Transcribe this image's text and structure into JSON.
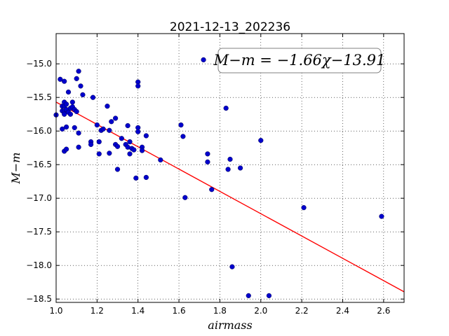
{
  "chart_data": {
    "type": "scatter",
    "title": "2021-12-13_202236",
    "xlabel": "airmass",
    "ylabel": "M−m",
    "xlim": [
      1.0,
      2.7
    ],
    "ylim": [
      -18.55,
      -14.55
    ],
    "xticks": [
      1.0,
      1.2,
      1.4,
      1.6,
      1.8,
      2.0,
      2.2,
      2.4,
      2.6
    ],
    "xtick_labels": [
      "1.0",
      "1.2",
      "1.4",
      "1.6",
      "1.8",
      "2.0",
      "2.2",
      "2.4",
      "2.6"
    ],
    "yticks": [
      -15.0,
      -15.5,
      -16.0,
      -16.5,
      -17.0,
      -17.5,
      -18.0,
      -18.5
    ],
    "ytick_labels": [
      "−15.0",
      "−15.5",
      "−16.0",
      "−16.5",
      "−17.0",
      "−17.5",
      "−18.0",
      "−18.5"
    ],
    "grid": true,
    "annotation": "M−m = −1.66χ−13.91",
    "fit": {
      "slope": -1.66,
      "intercept": -13.91,
      "color": "#ff0000"
    },
    "marker_color": "#0000cc",
    "points": [
      [
        1.0,
        -15.76
      ],
      [
        1.02,
        -15.23
      ],
      [
        1.03,
        -15.63
      ],
      [
        1.03,
        -15.7
      ],
      [
        1.03,
        -15.97
      ],
      [
        1.04,
        -15.26
      ],
      [
        1.04,
        -15.57
      ],
      [
        1.04,
        -15.63
      ],
      [
        1.04,
        -15.71
      ],
      [
        1.04,
        -15.75
      ],
      [
        1.04,
        -16.3
      ],
      [
        1.05,
        -15.6
      ],
      [
        1.05,
        -15.68
      ],
      [
        1.05,
        -15.94
      ],
      [
        1.05,
        -16.27
      ],
      [
        1.06,
        -15.72
      ],
      [
        1.06,
        -15.42
      ],
      [
        1.07,
        -15.66
      ],
      [
        1.07,
        -15.75
      ],
      [
        1.08,
        -15.64
      ],
      [
        1.08,
        -15.57
      ],
      [
        1.09,
        -15.68
      ],
      [
        1.09,
        -15.95
      ],
      [
        1.1,
        -15.71
      ],
      [
        1.1,
        -15.22
      ],
      [
        1.11,
        -15.11
      ],
      [
        1.11,
        -16.03
      ],
      [
        1.11,
        -16.24
      ],
      [
        1.12,
        -15.33
      ],
      [
        1.13,
        -15.46
      ],
      [
        1.17,
        -16.16
      ],
      [
        1.17,
        -16.2
      ],
      [
        1.18,
        -15.5
      ],
      [
        1.2,
        -15.91
      ],
      [
        1.21,
        -16.16
      ],
      [
        1.21,
        -16.34
      ],
      [
        1.22,
        -15.99
      ],
      [
        1.23,
        -15.97
      ],
      [
        1.25,
        -15.63
      ],
      [
        1.26,
        -15.99
      ],
      [
        1.26,
        -16.33
      ],
      [
        1.27,
        -15.86
      ],
      [
        1.29,
        -15.81
      ],
      [
        1.29,
        -16.2
      ],
      [
        1.3,
        -16.23
      ],
      [
        1.3,
        -16.57
      ],
      [
        1.32,
        -16.11
      ],
      [
        1.34,
        -16.2
      ],
      [
        1.35,
        -15.92
      ],
      [
        1.35,
        -16.24
      ],
      [
        1.36,
        -16.16
      ],
      [
        1.36,
        -16.34
      ],
      [
        1.37,
        -16.26
      ],
      [
        1.38,
        -16.28
      ],
      [
        1.39,
        -16.7
      ],
      [
        1.4,
        -15.27
      ],
      [
        1.4,
        -15.33
      ],
      [
        1.4,
        -15.95
      ],
      [
        1.4,
        -16.01
      ],
      [
        1.42,
        -16.24
      ],
      [
        1.42,
        -16.29
      ],
      [
        1.44,
        -16.07
      ],
      [
        1.44,
        -16.69
      ],
      [
        1.51,
        -16.43
      ],
      [
        1.61,
        -15.91
      ],
      [
        1.62,
        -16.08
      ],
      [
        1.63,
        -16.99
      ],
      [
        1.72,
        -14.94
      ],
      [
        1.74,
        -16.34
      ],
      [
        1.74,
        -16.46
      ],
      [
        1.76,
        -16.87
      ],
      [
        1.83,
        -15.66
      ],
      [
        1.84,
        -16.57
      ],
      [
        1.85,
        -16.42
      ],
      [
        1.86,
        -18.02
      ],
      [
        1.9,
        -16.55
      ],
      [
        1.94,
        -18.45
      ],
      [
        2.0,
        -16.14
      ],
      [
        2.04,
        -18.45
      ],
      [
        2.21,
        -17.14
      ],
      [
        2.59,
        -17.27
      ]
    ]
  }
}
